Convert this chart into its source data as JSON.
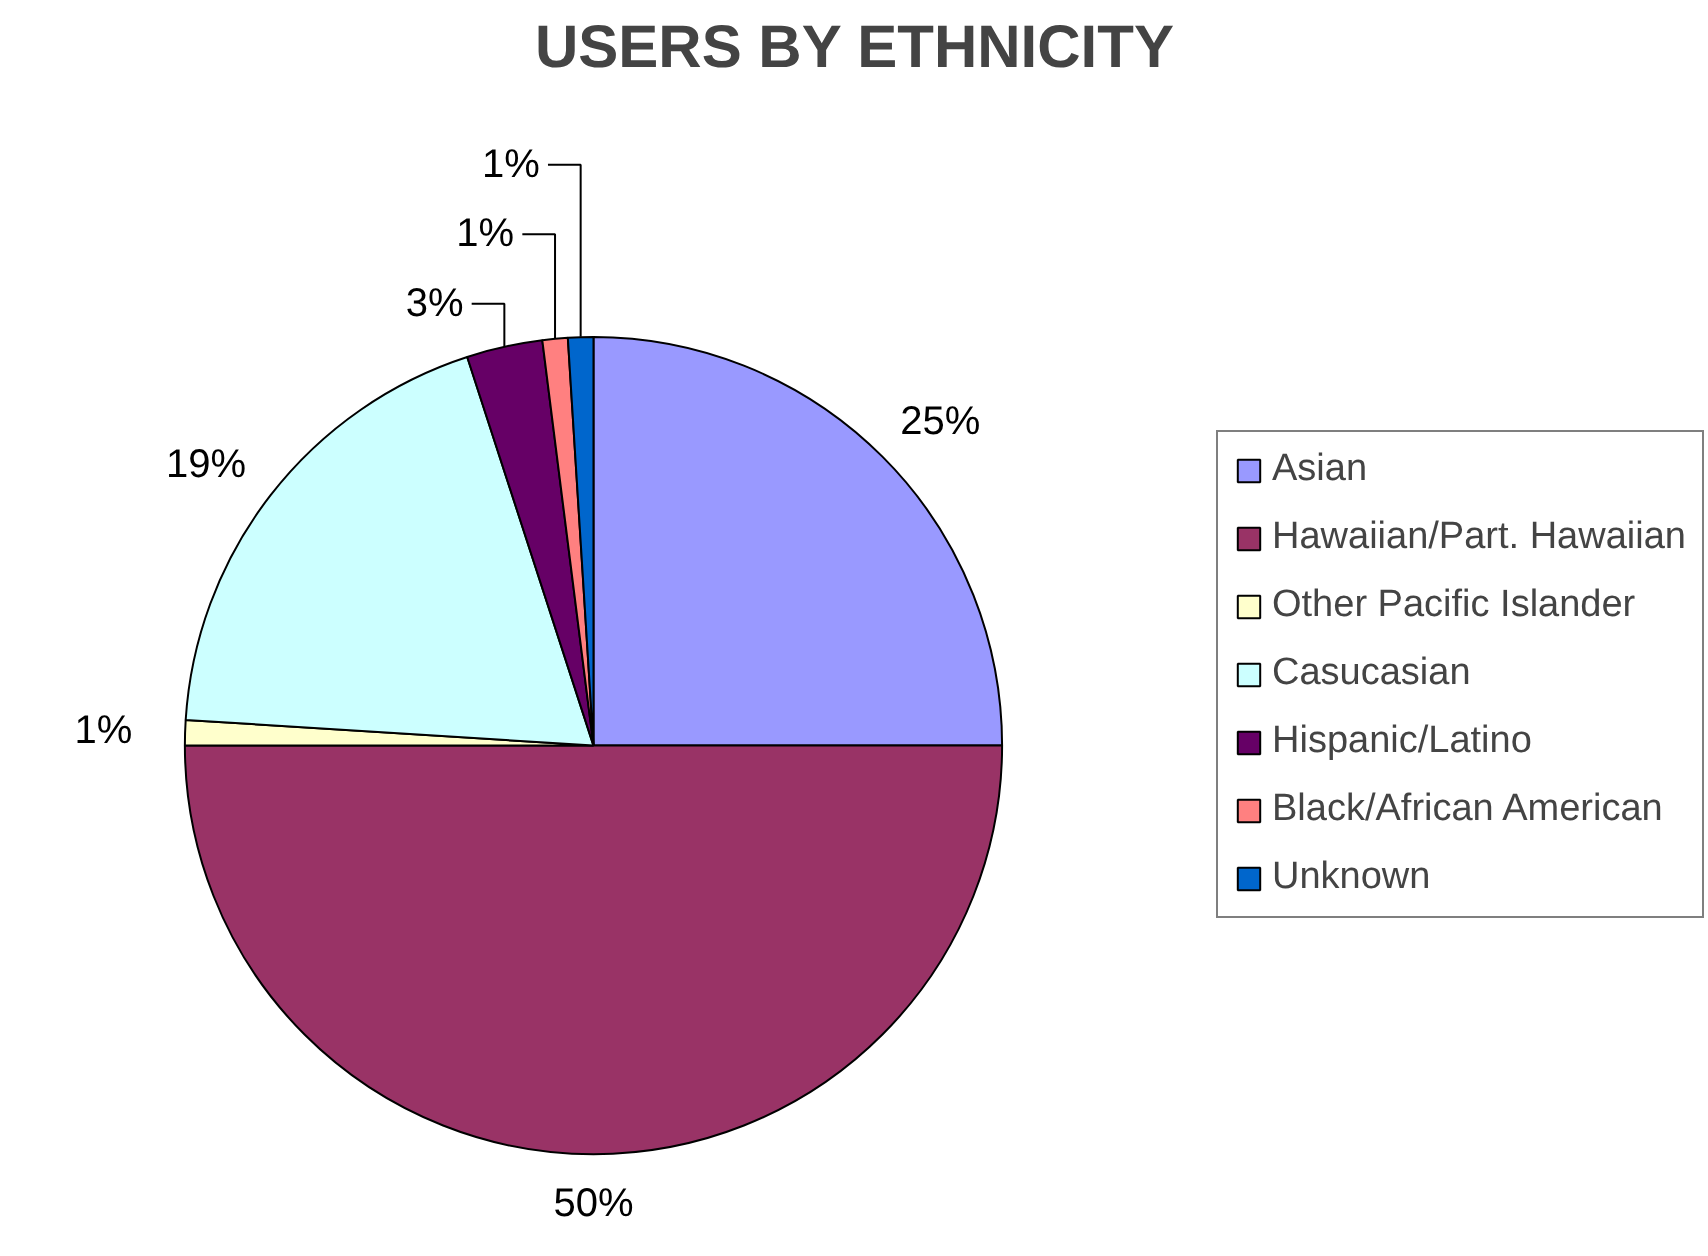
{
  "chart_data": {
    "type": "pie",
    "title": "USERS BY ETHNICITY",
    "categories": [
      "Asian",
      "Hawaiian/Part. Hawaiian",
      "Other Pacific Islander",
      "Casucasian",
      "Hispanic/Latino",
      "Black/African American",
      "Unknown"
    ],
    "values": [
      25,
      50,
      1,
      19,
      3,
      1,
      1
    ],
    "colors": [
      "#9999ff",
      "#993366",
      "#ffffcc",
      "#ccffff",
      "#660066",
      "#ff8080",
      "#0066cc"
    ],
    "value_labels": [
      "25%",
      "50%",
      "1%",
      "19%",
      "3%",
      "1%",
      "1%"
    ],
    "legend": "right"
  }
}
